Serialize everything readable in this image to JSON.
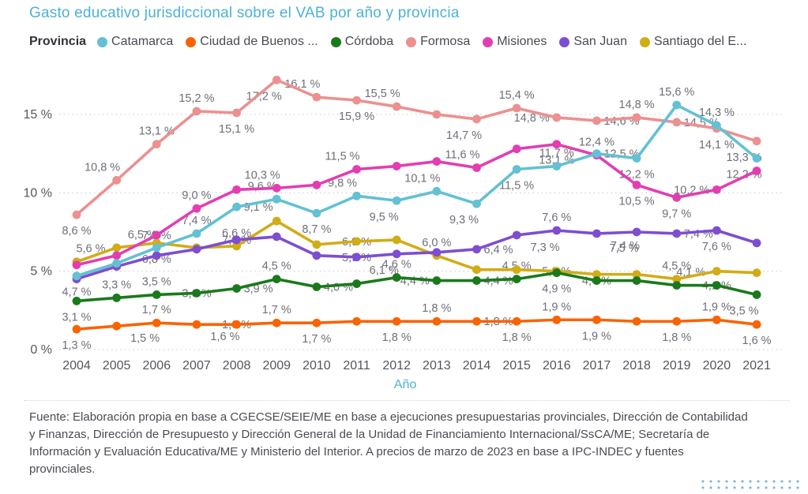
{
  "title": "Gasto educativo jurisdiccional sobre el VAB por año y provincia",
  "legend": {
    "title": "Provincia"
  },
  "footer": {
    "source_lines": [
      "Fuente: Elaboración propia en base a CGECSE/SEIE/ME en base a ejecuciones presupuestarias provinciales, Dirección de Contabilidad",
      "y Finanzas, Dirección de Presupuesto y Dirección General de la Unidad de Financiamiento Internacional/SsCA/ME; Secretaría de",
      "Información y Evaluación Educativa/ME y Ministerio del Interior. A precios de marzo de 2023 en base a IPC-INDEC y fuentes",
      "provinciales."
    ]
  },
  "chart_data": {
    "type": "line",
    "x": [
      2004,
      2005,
      2006,
      2007,
      2008,
      2009,
      2010,
      2011,
      2012,
      2013,
      2014,
      2015,
      2016,
      2017,
      2018,
      2019,
      2020,
      2021
    ],
    "xlabel": "Año",
    "ylabel": "",
    "ylim": [
      0,
      17.6
    ],
    "yticks": [
      0,
      5,
      10,
      15
    ],
    "ytick_suffix": " %",
    "grid": "horizontal-dotted",
    "legend_position": "top",
    "colors": {
      "axis_title": "#4cb2d4",
      "label": "#6e6e78",
      "tick": "#55555e"
    },
    "series": [
      {
        "name": "Catamarca",
        "label": "Catamarca",
        "color": "#62c1d3",
        "values": [
          4.7,
          5.5,
          6.5,
          7.4,
          9.1,
          9.6,
          8.7,
          9.8,
          9.5,
          10.1,
          9.3,
          11.5,
          11.7,
          12.5,
          12.2,
          15.6,
          14.3,
          12.2
        ],
        "labels": [
          "4,7 %",
          null,
          "6,5 %",
          "7,4 %",
          "9,1 %",
          "9,6 %",
          "8,7 %",
          "9,8 %",
          "9,5 %",
          "10,1 %",
          "9,3 %",
          "11,5 %",
          "11,7 %",
          "12,5 %",
          "12,2 %",
          "15,6 %",
          "14,3 %",
          "12,2 %"
        ],
        "label_pos": [
          "b",
          null,
          "al",
          "a",
          "r",
          "al",
          "b",
          "al",
          "bl",
          "al",
          "bl",
          "b",
          "a",
          "r",
          "b",
          "a",
          "a",
          "bl"
        ]
      },
      {
        "name": "Ciudad de Buenos Aires",
        "label": "Ciudad de Buenos ...",
        "color": "#f96302",
        "values": [
          1.3,
          1.5,
          1.7,
          1.6,
          1.6,
          1.7,
          1.7,
          1.8,
          1.8,
          1.8,
          1.8,
          1.8,
          1.9,
          1.9,
          1.8,
          1.8,
          1.9,
          1.6
        ],
        "labels": [
          "1,3 %",
          "1,5 %",
          "1,7 %",
          "1,6 %",
          "1,6 %",
          "1,7 %",
          "1,7 %",
          null,
          "1,8 %",
          "1,8 %",
          "1,8 %",
          "1,8 %",
          "1,9 %",
          "1,9 %",
          null,
          "1,8 %",
          "1,9 %",
          "1,6 %"
        ],
        "label_pos": [
          "b",
          "br",
          "a",
          "br",
          "c",
          "a",
          "b",
          null,
          "b",
          "a",
          "r",
          "b",
          "a",
          "b",
          null,
          "b",
          "a",
          "b"
        ]
      },
      {
        "name": "Córdoba",
        "label": "Córdoba",
        "color": "#1a7a1b",
        "values": [
          3.1,
          3.3,
          3.5,
          3.6,
          3.9,
          4.5,
          4.0,
          4.2,
          4.6,
          4.4,
          4.4,
          4.5,
          4.9,
          4.4,
          4.4,
          4.1,
          4.1,
          3.5
        ],
        "labels": [
          "3,1 %",
          "3,3 %",
          "3,5 %",
          "3,6 %",
          "3,9 %",
          "4,5 %",
          "4,0 %",
          null,
          "4,6 %",
          "4,4 %",
          "4,4 %",
          "4,5 %",
          "4,9 %",
          "4,4 %",
          null,
          "4,1 %",
          "4,1 %",
          "3,5 %"
        ],
        "label_pos": [
          "b",
          "a",
          "a",
          "c",
          "r",
          "a",
          "r",
          null,
          "a",
          "l",
          "r",
          "a",
          "b",
          "c",
          null,
          "ar",
          "c",
          "bl"
        ]
      },
      {
        "name": "Formosa",
        "label": "Formosa",
        "color": "#ec9090",
        "values": [
          8.6,
          10.8,
          13.1,
          15.2,
          15.1,
          17.2,
          16.1,
          15.9,
          15.5,
          15.0,
          14.7,
          15.4,
          14.8,
          14.6,
          14.8,
          14.5,
          14.1,
          13.3
        ],
        "labels": [
          "8,6 %",
          "10,8 %",
          "13,1 %",
          "15,2 %",
          "15,1 %",
          "17,2 %",
          "16,1 %",
          "15,9 %",
          "15,5 %",
          null,
          "14,7 %",
          "15,4 %",
          "14,8 %",
          "14,6 %",
          "14,8 %",
          "14,5 %",
          "14,1 %",
          "13,3 %"
        ],
        "label_pos": [
          "b",
          "al",
          "a",
          "a",
          "b",
          "bl",
          "al",
          "b",
          "al",
          null,
          "bl",
          "a",
          "l",
          "r",
          "a",
          "r",
          "b",
          "bl"
        ]
      },
      {
        "name": "Misiones",
        "label": "Misiones",
        "color": "#e23eb2",
        "values": [
          5.4,
          6.0,
          7.3,
          9.0,
          10.2,
          10.3,
          10.5,
          11.5,
          11.7,
          12.0,
          11.6,
          12.8,
          13.1,
          12.4,
          10.5,
          9.7,
          10.2,
          11.4
        ],
        "labels": [
          null,
          null,
          "7,3 %",
          "9,0 %",
          null,
          "10,3 %",
          null,
          "11,5 %",
          null,
          null,
          "11,6 %",
          null,
          "13,1 %",
          "12,4 %",
          "10,5 %",
          "9,7 %",
          "10,2 %",
          null
        ],
        "label_pos": [
          null,
          null,
          "c",
          "a",
          null,
          "al",
          null,
          "al",
          null,
          null,
          "al",
          null,
          "b",
          "a",
          "b",
          "b",
          "l",
          null
        ]
      },
      {
        "name": "San Juan",
        "label": "San Juan",
        "color": "#7d4ed0",
        "values": [
          4.5,
          5.3,
          6.0,
          6.4,
          7.0,
          7.2,
          6.0,
          5.9,
          6.1,
          6.2,
          6.4,
          7.3,
          7.6,
          7.4,
          7.5,
          7.4,
          7.6,
          6.8
        ],
        "labels": [
          null,
          null,
          null,
          null,
          "7,0 %",
          null,
          null,
          "5,9 %",
          "6,1 %",
          null,
          "6,4 %",
          "7,3 %",
          "7,6 %",
          "7,4 %",
          "7,5 %",
          "7,4 %",
          "7,6 %",
          null
        ],
        "label_pos": [
          null,
          null,
          null,
          null,
          "c",
          null,
          null,
          "c",
          "bl",
          null,
          "r",
          "br",
          "a",
          "br",
          "bl",
          "r",
          "b",
          null
        ]
      },
      {
        "name": "Santiago del Estero",
        "label": "Santiago del E...",
        "color": "#d2ac16",
        "values": [
          5.6,
          6.5,
          6.8,
          6.5,
          6.6,
          8.2,
          6.7,
          6.9,
          7.0,
          6.0,
          5.1,
          5.1,
          5.0,
          4.8,
          4.8,
          4.5,
          5.0,
          4.9
        ],
        "labels": [
          "5,6 %",
          null,
          "6,8 %",
          null,
          "6,6 %",
          null,
          null,
          "6,9 %",
          null,
          "6,0 %",
          null,
          null,
          "5,0 %",
          null,
          null,
          "4,5 %",
          null,
          null
        ],
        "label_pos": [
          "ar",
          null,
          "b",
          null,
          "a",
          null,
          null,
          "c",
          null,
          "a",
          null,
          null,
          "c",
          null,
          null,
          "a",
          null,
          null
        ]
      }
    ]
  }
}
